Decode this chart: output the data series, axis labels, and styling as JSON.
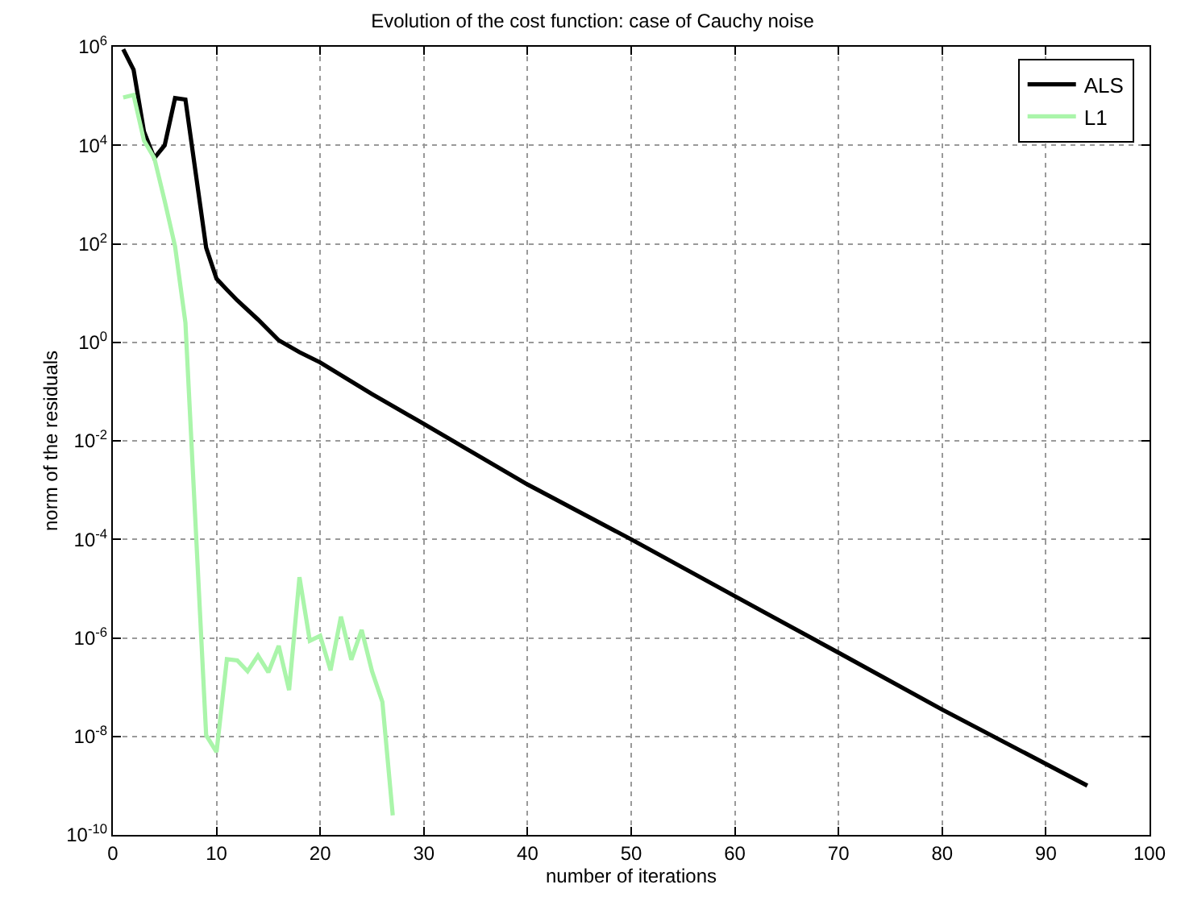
{
  "chart_data": {
    "type": "line",
    "title": "Evolution of the cost function: case of Cauchy noise",
    "xlabel": "number of iterations",
    "ylabel": "norm of the residuals",
    "log": "y",
    "grid": true,
    "legend": "top right",
    "marker": "none",
    "line_style": "solid",
    "xlim": [
      0,
      100
    ],
    "xticks": [
      0,
      10,
      20,
      30,
      40,
      50,
      60,
      70,
      80,
      90,
      100
    ],
    "ylim": [
      1e-10,
      1000000.0
    ],
    "yticks": [
      {
        "value": 1e-10,
        "label": "10$^{-10}$"
      },
      {
        "value": 1e-08,
        "label": "10$^{-8}$"
      },
      {
        "value": 1e-06,
        "label": "10$^{-6}$"
      },
      {
        "value": 0.0001,
        "label": "10$^{-4}$"
      },
      {
        "value": 0.01,
        "label": "10$^{-2}$"
      },
      {
        "value": 1,
        "label": "10$^{0}$"
      },
      {
        "value": 100,
        "label": "10$^{2}$"
      },
      {
        "value": 10000,
        "label": "10$^{4}$"
      },
      {
        "value": 1000000,
        "label": "10$^{6}$"
      }
    ],
    "series": [
      {
        "name": "ALS",
        "color": "#000000",
        "x": [
          1,
          2,
          3,
          4,
          5,
          6,
          7,
          9,
          10,
          11,
          12,
          14,
          16,
          18,
          20,
          25,
          30,
          40,
          50,
          60,
          70,
          80,
          94
        ],
        "values": [
          890000,
          340000,
          19000,
          5500,
          10000,
          91000,
          85000,
          83,
          19.5,
          11.7,
          7.1,
          2.9,
          1.1,
          0.63,
          0.39,
          0.089,
          0.022,
          0.0013,
          0.0001,
          7e-06,
          5e-07,
          3.5e-08,
          1e-09
        ]
      },
      {
        "name": "L1",
        "color": "#aaf5aa",
        "x": [
          1,
          2,
          3,
          4,
          5,
          6,
          7,
          9,
          10,
          11,
          12,
          13,
          14,
          15,
          16,
          17,
          18,
          19,
          20,
          21,
          22,
          23,
          24,
          25,
          26,
          27
        ],
        "values": [
          93000,
          105000,
          12500,
          5500,
          740,
          89,
          2.5,
          1.05e-08,
          4.8e-09,
          3.7e-07,
          3.5e-07,
          2.1e-07,
          4.4e-07,
          2e-07,
          6.9e-07,
          8.7e-08,
          1.7e-05,
          8.7e-07,
          1.1e-06,
          2.2e-07,
          2.7e-06,
          3.6e-07,
          1.45e-06,
          2.1e-07,
          5e-08,
          2.5e-10
        ]
      }
    ]
  }
}
